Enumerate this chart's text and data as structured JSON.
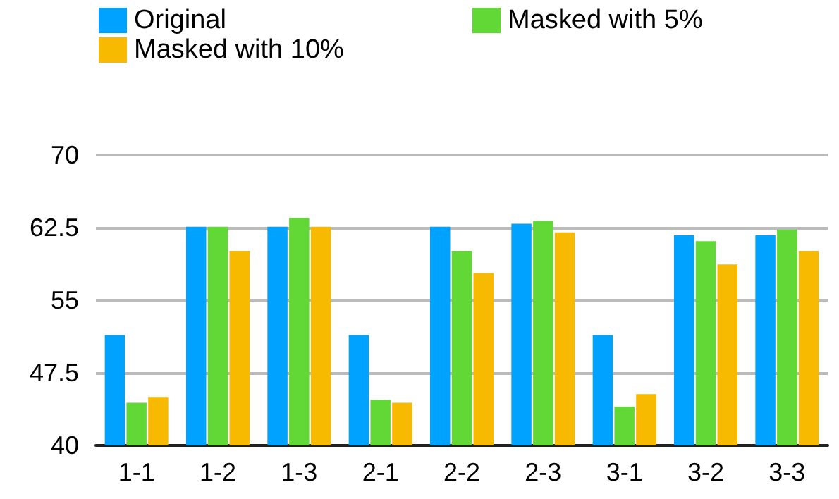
{
  "chart_data": {
    "type": "bar",
    "categories": [
      "1-1",
      "1-2",
      "1-3",
      "2-1",
      "2-2",
      "2-3",
      "3-1",
      "3-2",
      "3-3"
    ],
    "series": [
      {
        "name": "Original",
        "color": "#00a2ff",
        "values": [
          51.4,
          62.6,
          62.6,
          51.4,
          62.6,
          62.9,
          51.4,
          61.7,
          61.7
        ]
      },
      {
        "name": "Masked with 5%",
        "color": "#61d836",
        "values": [
          44.4,
          62.6,
          63.5,
          44.7,
          60.1,
          63.2,
          44.0,
          61.1,
          62.3
        ]
      },
      {
        "name": "Masked with 10%",
        "color": "#f8ba00",
        "values": [
          45.0,
          60.1,
          62.6,
          44.4,
          57.8,
          62.0,
          45.3,
          58.7,
          60.1
        ]
      }
    ],
    "ylim": [
      40,
      70
    ],
    "yticks": [
      40,
      47.5,
      55,
      62.5,
      70
    ],
    "grid": "y",
    "legend": "top left"
  }
}
